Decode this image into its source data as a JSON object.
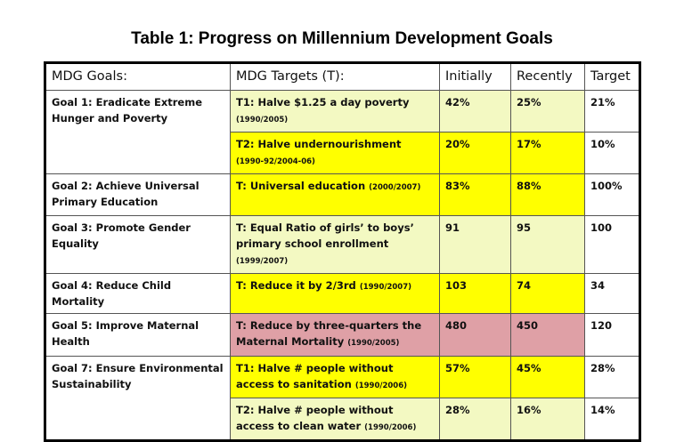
{
  "title": "Table 1:  Progress on Millennium Development Goals",
  "headers": [
    "MDG Goals:",
    "MDG Targets (T):",
    "Initially",
    "Recently",
    "Target"
  ],
  "colors": {
    "light_yellow": "#f3f9c2",
    "yellow": "#ffff00",
    "pink": "#dfa0a6"
  },
  "rows": [
    {
      "goal": "Goal 1: Eradicate Extreme Hunger and Poverty",
      "target": "T1: Halve $1.25 a day poverty",
      "years": "(1990/2005)",
      "initially": "42%",
      "recently": "25%",
      "goal_value": "21%"
    },
    {
      "goal": "",
      "target": "T2:  Halve undernourishment",
      "years": "(1990-92/2004-06)",
      "initially": "20%",
      "recently": "17%",
      "goal_value": "10%"
    },
    {
      "goal": "Goal 2: Achieve Universal Primary Education",
      "target": "T: Universal education",
      "years": "(2000/2007)",
      "initially": "83%",
      "recently": "88%",
      "goal_value": "100%"
    },
    {
      "goal": "Goal 3: Promote Gender Equality",
      "target": "T: Equal Ratio of girls’ to boys’ primary school enrollment",
      "years": "(1999/2007)",
      "initially": "91",
      "recently": "95",
      "goal_value": "100"
    },
    {
      "goal": "Goal 4: Reduce Child Mortality",
      "target": "T: Reduce it by 2/3rd",
      "years": "(1990/2007)",
      "initially": "103",
      "recently": "74",
      "goal_value": "34"
    },
    {
      "goal": "Goal 5: Improve Maternal Health",
      "target": "T: Reduce by three-quarters the Maternal Mortality",
      "years": "(1990/2005)",
      "initially": "480",
      "recently": "450",
      "goal_value": "120"
    },
    {
      "goal": "Goal 7: Ensure Environmental Sustainability",
      "target": "T1: Halve # people without access to sanitation",
      "years": "(1990/2006)",
      "initially": "57%",
      "recently": "45%",
      "goal_value": "28%"
    },
    {
      "goal": "",
      "target": "T2: Halve # people without access to clean water",
      "years": "(1990/2006)",
      "initially": "28%",
      "recently": "16%",
      "goal_value": "14%"
    }
  ]
}
